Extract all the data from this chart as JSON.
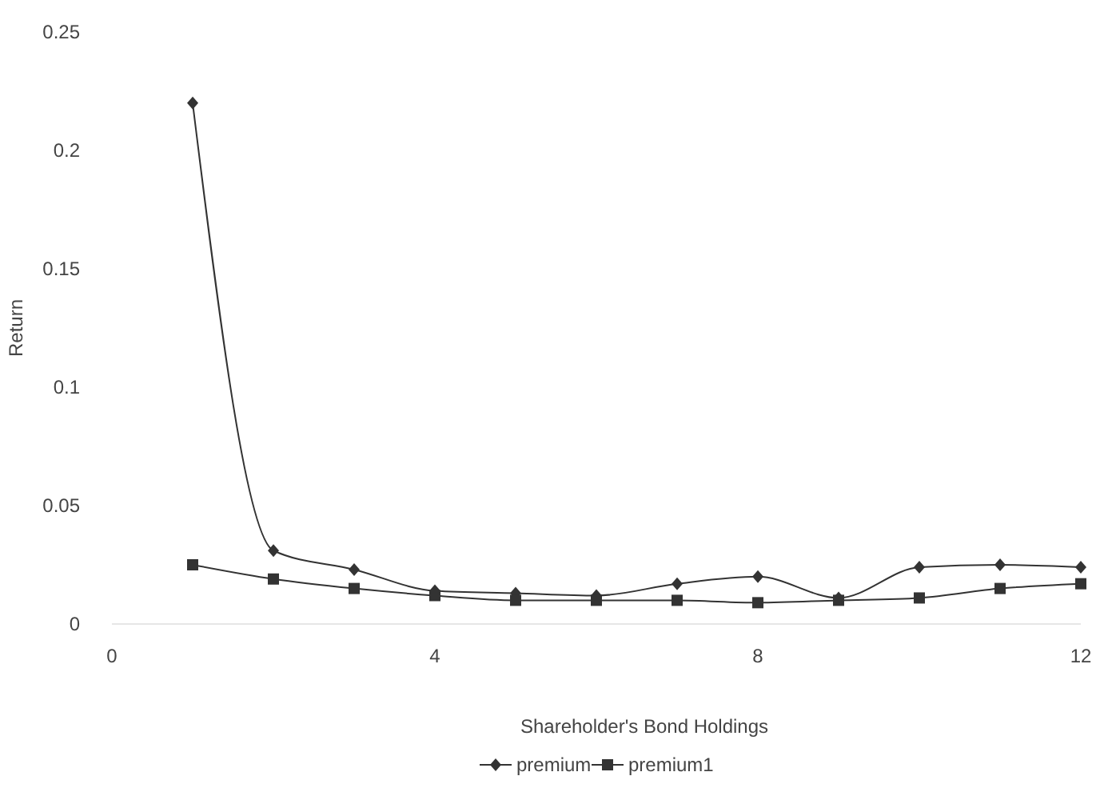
{
  "chart_data": {
    "type": "line",
    "xlabel": "Shareholder's Bond Holdings",
    "ylabel": "Return",
    "x": [
      1,
      2,
      3,
      4,
      5,
      6,
      7,
      8,
      9,
      10,
      11,
      12
    ],
    "series": [
      {
        "name": "premium",
        "color": "#333333",
        "marker": "diamond",
        "values": [
          0.22,
          0.031,
          0.023,
          0.014,
          0.013,
          0.012,
          0.017,
          0.02,
          0.011,
          0.024,
          0.025,
          0.024
        ]
      },
      {
        "name": "premium1",
        "color": "#333333",
        "marker": "square",
        "values": [
          0.025,
          0.019,
          0.015,
          0.012,
          0.01,
          0.01,
          0.01,
          0.009,
          0.01,
          0.011,
          0.015,
          0.017
        ]
      }
    ],
    "xlim": [
      0,
      12
    ],
    "xticks": [
      0,
      4,
      8,
      12
    ],
    "ylim": [
      0,
      0.25
    ],
    "yticks": [
      0,
      0.05,
      0.1,
      0.15,
      0.2,
      0.25
    ],
    "grid": false,
    "legend": "bottom"
  }
}
